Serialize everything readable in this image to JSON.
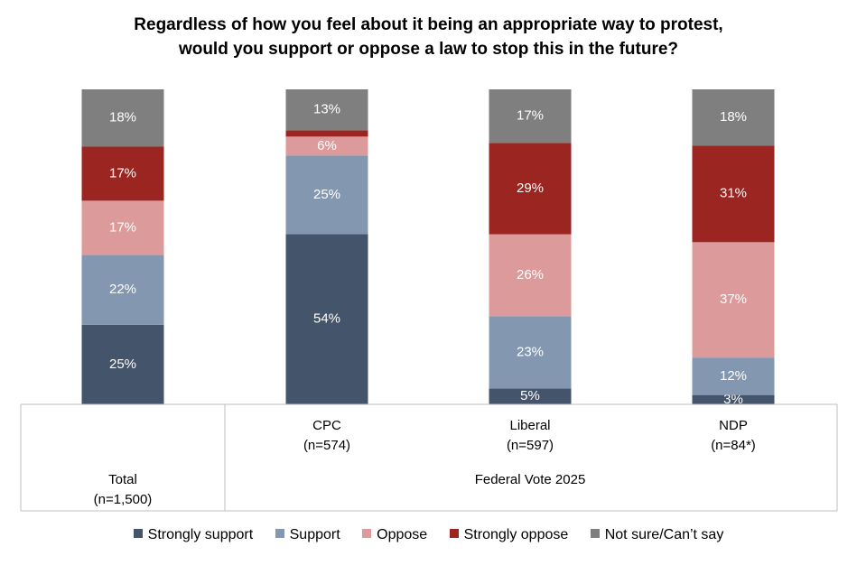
{
  "chart_data": {
    "type": "bar",
    "stacked": true,
    "title_lines": [
      "Regardless of how you feel about it being an appropriate way to protest,",
      "would you support or oppose a law to stop this in the future?"
    ],
    "categories": [
      {
        "name": "Total",
        "n": "(n=1,500)"
      },
      {
        "name": "CPC",
        "n": "(n=574)"
      },
      {
        "name": "Liberal",
        "n": "(n=597)"
      },
      {
        "name": "NDP",
        "n": "(n=84*)"
      }
    ],
    "group_label": "Federal Vote 2025",
    "series": [
      {
        "name": "Strongly support",
        "color": "#44546a",
        "values": [
          25,
          54,
          5,
          3
        ],
        "labels": [
          "25%",
          "54%",
          "5%",
          "3%"
        ]
      },
      {
        "name": "Support",
        "color": "#8497b0",
        "values": [
          22,
          25,
          23,
          12
        ],
        "labels": [
          "22%",
          "25%",
          "23%",
          "12%"
        ]
      },
      {
        "name": "Oppose",
        "color": "#dc9a9a",
        "values": [
          17,
          6,
          26,
          37
        ],
        "labels": [
          "17%",
          "6%",
          "26%",
          "37%"
        ]
      },
      {
        "name": "Strongly oppose",
        "color": "#9b2521",
        "values": [
          17,
          2,
          29,
          31
        ],
        "labels": [
          "17%",
          "",
          "29%",
          "31%"
        ]
      },
      {
        "name": "Not sure/Can’t say",
        "color": "#7f7f7f",
        "values": [
          18,
          13,
          17,
          18
        ],
        "labels": [
          "18%",
          "13%",
          "17%",
          "18%"
        ]
      }
    ],
    "ylim": [
      0,
      100
    ],
    "legend_position": "bottom"
  }
}
